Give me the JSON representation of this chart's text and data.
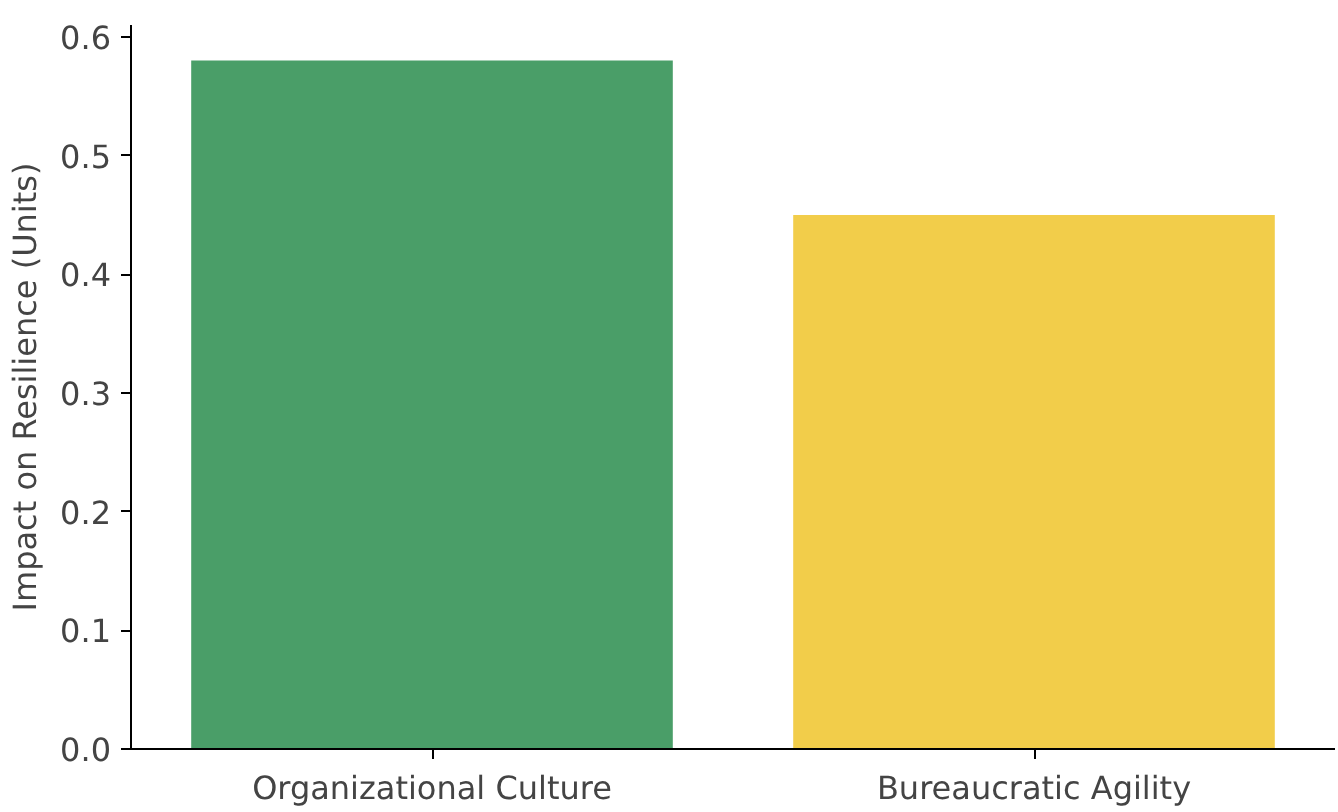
{
  "chart_data": {
    "type": "bar",
    "ylabel": "Impact on Resilience (Units)",
    "categories": [
      "Organizational Culture",
      "Bureaucratic Agility"
    ],
    "values": [
      0.58,
      0.45
    ],
    "colors": [
      "#4a9e68",
      "#f2cd4a"
    ],
    "ylim": [
      0,
      0.61
    ],
    "yticks": [
      {
        "value": 0,
        "label": "0.0"
      },
      0.1,
      0.2,
      0.3,
      0.4,
      0.5,
      0.6
    ],
    "grid": false
  }
}
